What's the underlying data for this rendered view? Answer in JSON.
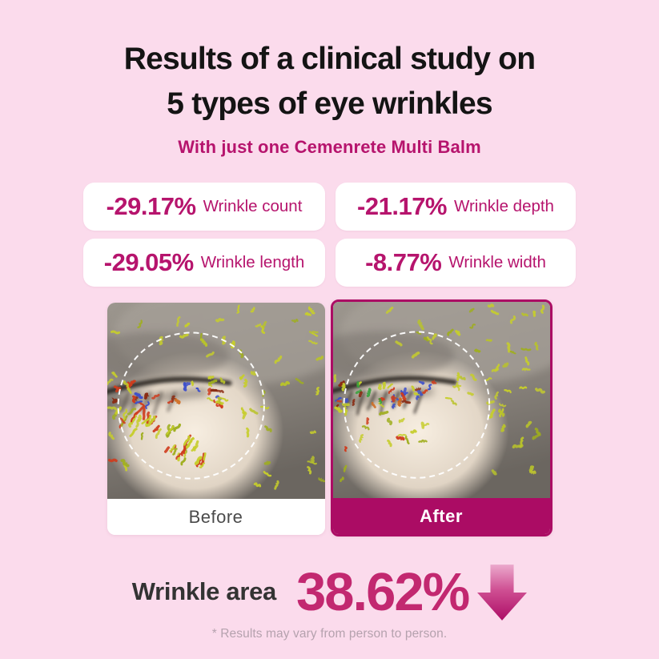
{
  "title": {
    "line1": "Results of a clinical study on",
    "line2": "5 types of eye wrinkles"
  },
  "subtitle": "With just one Cemenrete Multi Balm",
  "stats": {
    "items": [
      {
        "value": "-29.17%",
        "label": "Wrinkle count"
      },
      {
        "value": "-21.17%",
        "label": "Wrinkle depth"
      },
      {
        "value": "-29.05%",
        "label": "Wrinkle length"
      },
      {
        "value": "-8.77%",
        "label": "Wrinkle width"
      }
    ]
  },
  "photos": {
    "before_label": "Before",
    "after_label": "After"
  },
  "result": {
    "label": "Wrinkle area",
    "value": "38.62%",
    "direction": "down"
  },
  "footnote": "* Results may vary from person to person.",
  "colors": {
    "background": "#fbdbec",
    "accent": "#b6146d",
    "accent_dark": "#ab0c64",
    "number": "#c22870",
    "card_bg": "#ffffff"
  },
  "icons": {
    "down_arrow": "down-arrow"
  }
}
